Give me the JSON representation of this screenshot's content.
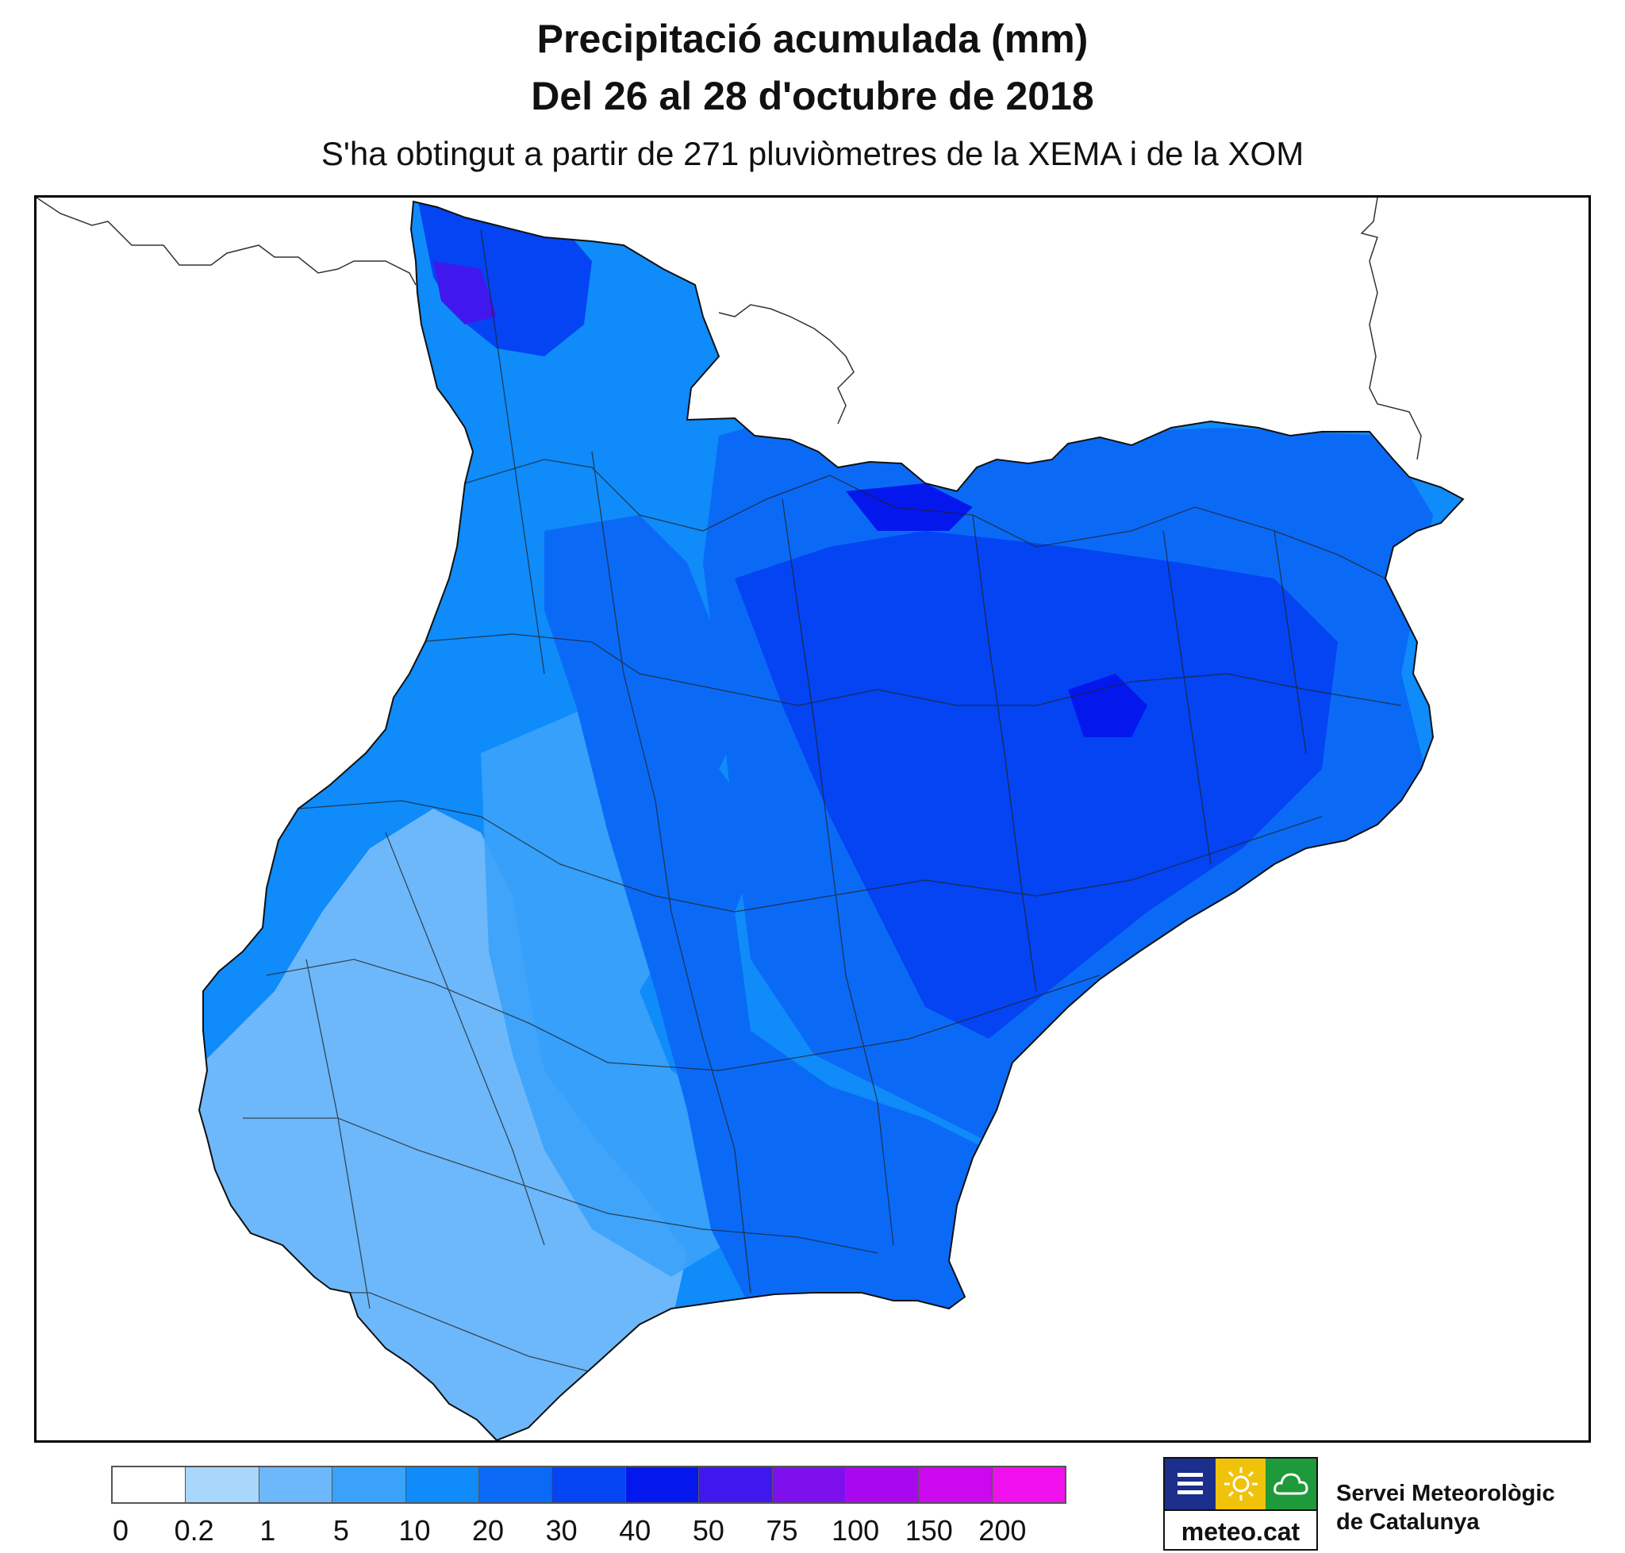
{
  "title_line1": "Precipitació acumulada (mm)",
  "title_line2": "Del 26 al 28 d'octubre de 2018",
  "subtitle": "S'ha obtingut a partir de 271 pluviòmetres de la XEMA i de la XOM",
  "legend": {
    "ticks": [
      "0",
      "0.2",
      "1",
      "5",
      "10",
      "20",
      "30",
      "40",
      "50",
      "75",
      "100",
      "150",
      "200"
    ],
    "colors": [
      "#ffffff",
      "#a9d6fb",
      "#6db8fa",
      "#3ba2fa",
      "#0f8bfa",
      "#0a6af6",
      "#0444f2",
      "#0418ee",
      "#4018ee",
      "#7e10ee",
      "#a808ee",
      "#cc08ee",
      "#f010ee"
    ]
  },
  "map_fill": {
    "band_1_5": "#6db8fa",
    "band_5_10": "#3ba2fa",
    "band_10_20": "#0f8bfa",
    "band_20_30": "#0a6af6",
    "band_30_40": "#0444f2",
    "band_40_50": "#0418ee",
    "band_50_75": "#4018ee"
  },
  "logo": {
    "text": "meteo.cat",
    "icons": [
      "menu-icon",
      "sun-icon",
      "cloud-icon"
    ],
    "icon_colors": [
      "#1c2f8c",
      "#f0c20a",
      "#1f9a3a"
    ]
  },
  "organization": {
    "line1": "Servei Meteorològic",
    "line2": "de Catalunya"
  }
}
